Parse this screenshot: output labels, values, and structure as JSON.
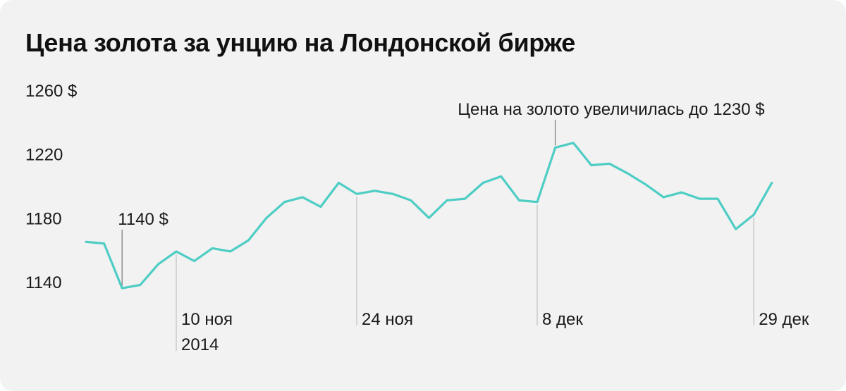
{
  "chart_data": {
    "type": "line",
    "title": "Цена золота за унцию на Лондонской бирже",
    "color": "#4ecdc4",
    "ylim": [
      1130,
      1265
    ],
    "y_ticks": [
      {
        "value": 1260,
        "label": "1260 $"
      },
      {
        "value": 1220,
        "label": "1220"
      },
      {
        "value": 1180,
        "label": "1180"
      },
      {
        "value": 1140,
        "label": "1140"
      }
    ],
    "values": [
      1165,
      1164,
      1136,
      1138,
      1151,
      1159,
      1153,
      1161,
      1159,
      1166,
      1180,
      1190,
      1193,
      1187,
      1202,
      1195,
      1197,
      1195,
      1191,
      1180,
      1191,
      1192,
      1202,
      1206,
      1191,
      1190,
      1224,
      1227,
      1213,
      1214,
      1208,
      1201,
      1193,
      1196,
      1192,
      1192,
      1173,
      1182,
      1202
    ],
    "x_labels": [
      {
        "index": 5,
        "lines": [
          "10 ноя",
          "2014"
        ]
      },
      {
        "index": 15,
        "lines": [
          "24 ноя"
        ]
      },
      {
        "index": 25,
        "lines": [
          "8 дек"
        ]
      },
      {
        "index": 37,
        "lines": [
          "29 дек"
        ]
      }
    ],
    "annotations": [
      {
        "index": 2,
        "text": "1140 $"
      },
      {
        "index": 26,
        "text": "Цена на золото увеличилась до 1230 $"
      }
    ],
    "grid": false,
    "legend": "none"
  }
}
